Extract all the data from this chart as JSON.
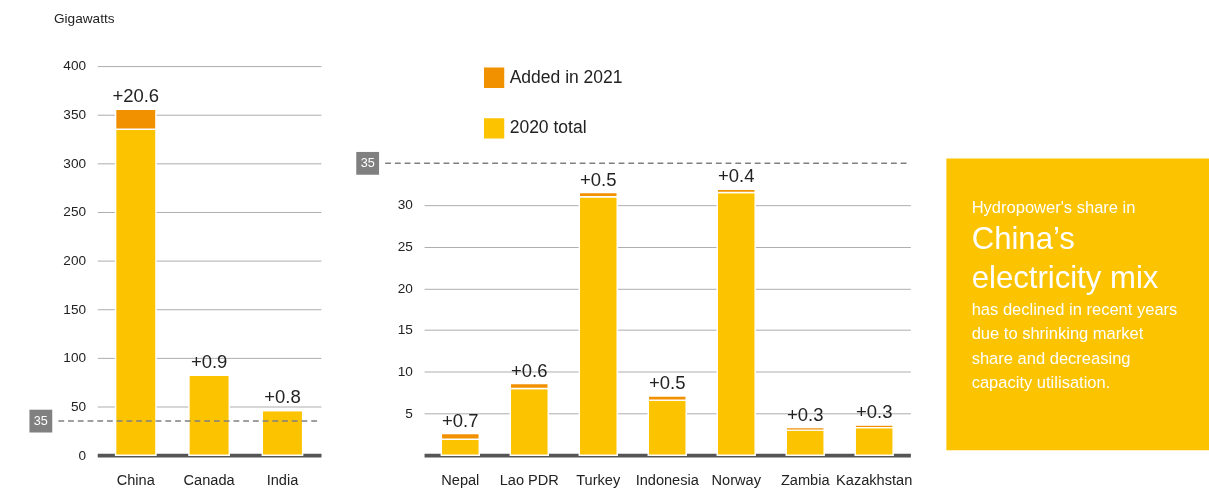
{
  "chart_data": [
    {
      "type": "bar",
      "stacked": true,
      "ylabel": "Gigawatts",
      "categories": [
        "China",
        "Canada",
        "India"
      ],
      "series": [
        {
          "color": "#fbc300",
          "values": [
            335,
            82,
            46
          ]
        },
        {
          "color": "#f29100",
          "values": [
            20.6,
            0.9,
            0.8
          ],
          "value_labels": [
            "+20.6",
            "+0.9",
            "+0.8"
          ]
        }
      ],
      "ylim": [
        0,
        400
      ],
      "yticks": [
        0,
        50,
        100,
        150,
        200,
        250,
        300,
        350,
        400
      ],
      "grid": "y",
      "ref_lines": [
        {
          "axis": "y",
          "value": 35,
          "label": "35",
          "color": "#808080",
          "line_style": "dashed"
        }
      ]
    },
    {
      "type": "bar",
      "stacked": true,
      "categories": [
        "Nepal",
        "Lao PDR",
        "Turkey",
        "Indonesia",
        "Norway",
        "Zambia",
        "Kazakhstan"
      ],
      "series": [
        {
          "name": "2020 total",
          "color": "#fbc300",
          "values": [
            1.9,
            8.0,
            31.0,
            6.6,
            31.5,
            3.0,
            3.3
          ]
        },
        {
          "name": "Added in 2021",
          "color": "#f29100",
          "values": [
            0.7,
            0.6,
            0.5,
            0.5,
            0.4,
            0.3,
            0.3
          ],
          "value_labels": [
            "+0.7",
            "+0.6",
            "+0.5",
            "+0.5",
            "+0.4",
            "+0.3",
            "+0.3"
          ]
        }
      ],
      "ylim": [
        0,
        35
      ],
      "yticks": [
        5,
        10,
        15,
        20,
        25,
        30
      ],
      "grid": "y",
      "legend": "top left",
      "ref_lines": [
        {
          "axis": "y",
          "value": 35,
          "label": "35",
          "color": "#808080",
          "line_style": "dashed"
        }
      ]
    },
    {
      "type": "other",
      "annotations": [
        "Hydropower's share in",
        "China’s",
        "electricity mix",
        "has declined in recent years",
        "due to shrinking market",
        "share and decreasing",
        "capacity utilisation."
      ]
    }
  ]
}
